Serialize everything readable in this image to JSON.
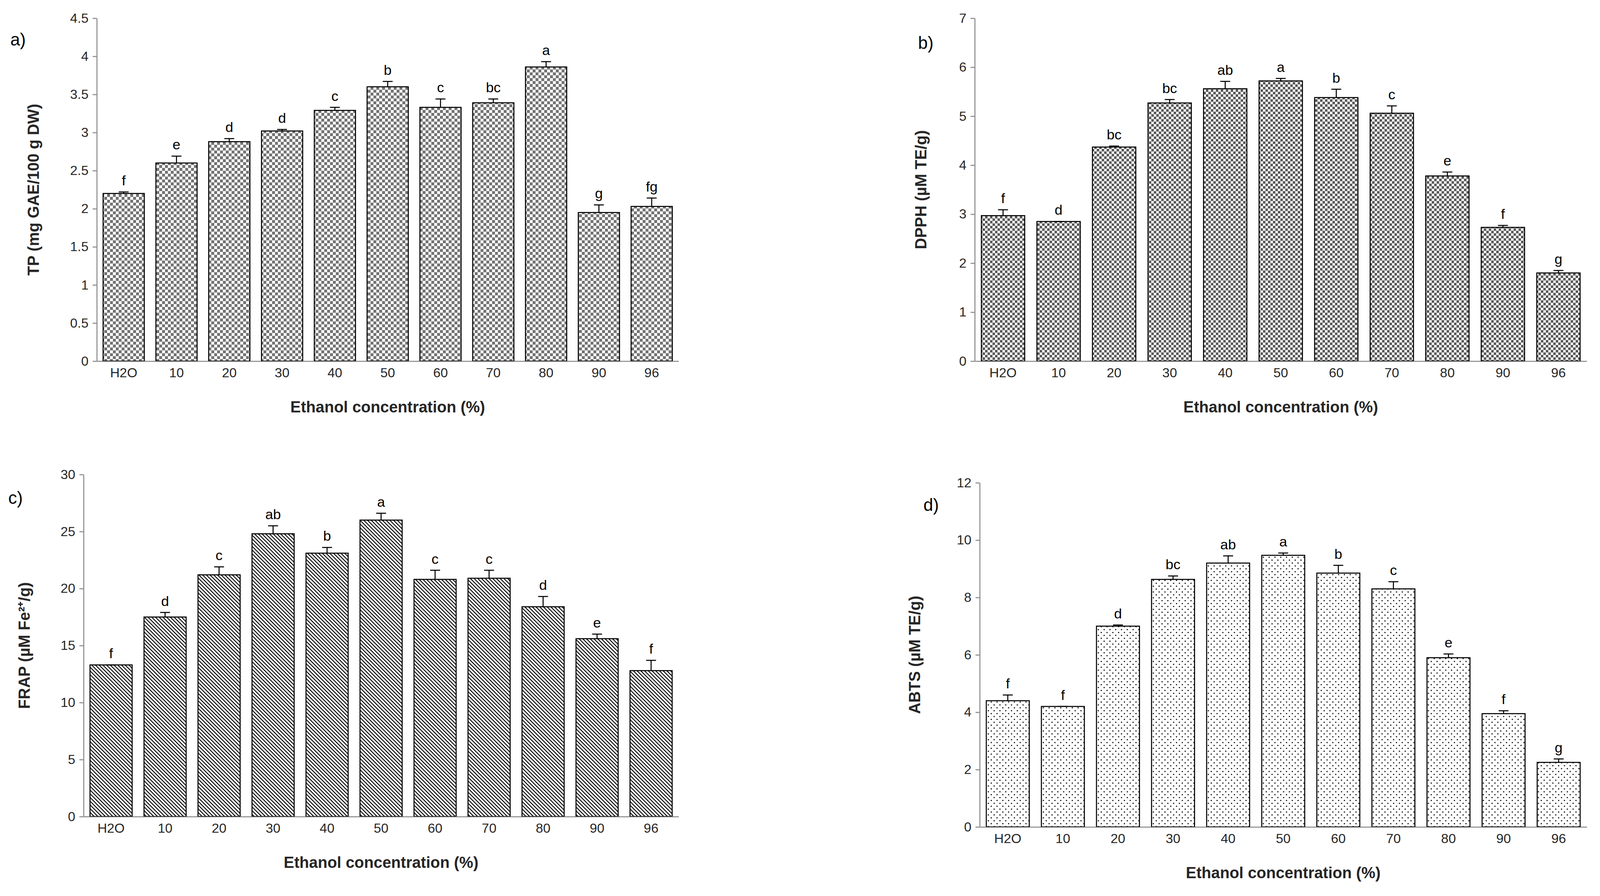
{
  "chart_data": [
    {
      "type": "bar",
      "title": "a)",
      "x_label": "Ethanol concentration (%)",
      "y_label": "TP (mg GAE/100 g DW)",
      "categories": [
        "H2O",
        "10",
        "20",
        "30",
        "40",
        "50",
        "60",
        "70",
        "80",
        "90",
        "96"
      ],
      "values": [
        2.2,
        2.6,
        2.88,
        3.02,
        3.29,
        3.6,
        3.33,
        3.39,
        3.86,
        1.95,
        2.03
      ],
      "errors": [
        0.02,
        0.09,
        0.04,
        0.02,
        0.04,
        0.07,
        0.11,
        0.05,
        0.07,
        0.1,
        0.11
      ],
      "annotations": [
        "f",
        "e",
        "d",
        "d",
        "c",
        "b",
        "c",
        "bc",
        "a",
        "g",
        "fg"
      ],
      "color": "#000000",
      "ylim": [
        0,
        4.5
      ],
      "yticks": [
        0,
        0.5,
        1,
        1.5,
        2,
        2.5,
        3,
        3.5,
        4,
        4.5
      ],
      "grid": false
    },
    {
      "type": "bar",
      "title": "b)",
      "x_label": "Ethanol concentration (%)",
      "y_label": "DPPH (µM TE/g)",
      "categories": [
        "H2O",
        "10",
        "20",
        "30",
        "40",
        "50",
        "60",
        "70",
        "80",
        "90",
        "96"
      ],
      "values": [
        2.97,
        2.85,
        4.37,
        5.27,
        5.56,
        5.72,
        5.38,
        5.06,
        3.78,
        2.73,
        1.8
      ],
      "errors": [
        0.12,
        0,
        0.02,
        0.07,
        0.15,
        0.05,
        0.17,
        0.15,
        0.08,
        0.04,
        0.05
      ],
      "annotations": [
        "f",
        "d",
        "bc",
        "bc",
        "ab",
        "a",
        "b",
        "c",
        "e",
        "f",
        "g"
      ],
      "color": "#000000",
      "ylim": [
        0,
        7
      ],
      "yticks": [
        0,
        1,
        2,
        3,
        4,
        5,
        6,
        7
      ],
      "grid": false
    },
    {
      "type": "bar",
      "title": "c)",
      "x_label": "Ethanol concentration (%)",
      "y_label": "FRAP (µM Fe²⁺/g)",
      "categories": [
        "H2O",
        "10",
        "20",
        "30",
        "40",
        "50",
        "60",
        "70",
        "80",
        "90",
        "96"
      ],
      "values": [
        13.3,
        17.5,
        21.2,
        24.8,
        23.1,
        26.0,
        20.8,
        20.9,
        18.4,
        15.6,
        12.8
      ],
      "errors": [
        0,
        0.4,
        0.7,
        0.7,
        0.5,
        0.6,
        0.8,
        0.7,
        0.9,
        0.4,
        0.9
      ],
      "annotations": [
        "f",
        "d",
        "c",
        "ab",
        "b",
        "a",
        "c",
        "c",
        "d",
        "e",
        "f"
      ],
      "color": "#000000",
      "ylim": [
        0,
        30
      ],
      "yticks": [
        0,
        5,
        10,
        15,
        20,
        25,
        30
      ],
      "grid": false
    },
    {
      "type": "bar",
      "title": "d)",
      "x_label": "Ethanol concentration (%)",
      "y_label": "ABTS (µM TE/g)",
      "categories": [
        "H2O",
        "10",
        "20",
        "30",
        "40",
        "50",
        "60",
        "70",
        "80",
        "90",
        "96"
      ],
      "values": [
        4.4,
        4.2,
        7.0,
        8.63,
        9.2,
        9.47,
        8.85,
        8.3,
        5.9,
        3.95,
        2.25
      ],
      "errors": [
        0.2,
        0,
        0.04,
        0.12,
        0.25,
        0.08,
        0.27,
        0.25,
        0.13,
        0.1,
        0.12
      ],
      "annotations": [
        "f",
        "f",
        "d",
        "bc",
        "ab",
        "a",
        "b",
        "c",
        "e",
        "f",
        "g"
      ],
      "color": "#000000",
      "ylim": [
        0,
        12
      ],
      "yticks": [
        0,
        2,
        4,
        6,
        8,
        10,
        12
      ],
      "grid": false
    }
  ]
}
